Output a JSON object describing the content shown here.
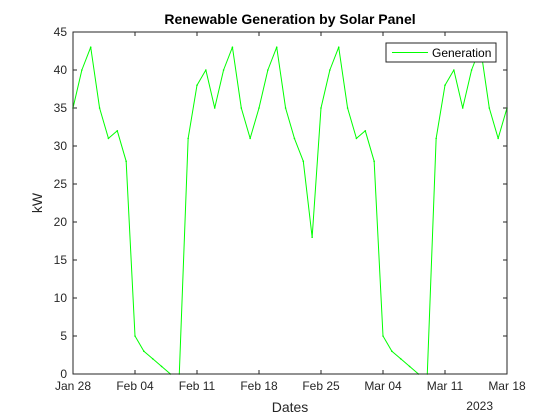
{
  "chart_data": {
    "type": "line",
    "title": "Renewable Generation by Solar Panel",
    "xlabel": "Dates",
    "ylabel": "kW",
    "year_label": "2023",
    "x_tick_labels": [
      "Jan 28",
      "Feb 04",
      "Feb 11",
      "Feb 18",
      "Feb 25",
      "Mar 04",
      "Mar 11",
      "Mar 18"
    ],
    "y_ticks": [
      0,
      5,
      10,
      15,
      20,
      25,
      30,
      35,
      40,
      45
    ],
    "xlim": [
      "2023-01-28",
      "2023-03-18"
    ],
    "ylim": [
      0,
      45
    ],
    "legend_location": "top-right",
    "grid": false,
    "series": [
      {
        "name": "Generation",
        "color": "#00ff00",
        "points": [
          [
            "2023-01-28",
            35
          ],
          [
            "2023-01-29",
            40
          ],
          [
            "2023-01-30",
            43
          ],
          [
            "2023-01-31",
            35
          ],
          [
            "2023-02-01",
            31
          ],
          [
            "2023-02-02",
            32
          ],
          [
            "2023-02-03",
            28
          ],
          [
            "2023-02-04",
            5
          ],
          [
            "2023-02-05",
            3
          ],
          [
            "2023-02-06",
            2
          ],
          [
            "2023-02-07",
            1
          ],
          [
            "2023-02-08",
            0
          ],
          [
            "2023-02-09",
            0
          ],
          [
            "2023-02-10",
            31
          ],
          [
            "2023-02-11",
            38
          ],
          [
            "2023-02-12",
            40
          ],
          [
            "2023-02-13",
            35
          ],
          [
            "2023-02-14",
            40
          ],
          [
            "2023-02-15",
            43
          ],
          [
            "2023-02-16",
            35
          ],
          [
            "2023-02-17",
            31
          ],
          [
            "2023-02-18",
            35
          ],
          [
            "2023-02-19",
            40
          ],
          [
            "2023-02-20",
            43
          ],
          [
            "2023-02-21",
            35
          ],
          [
            "2023-02-22",
            31
          ],
          [
            "2023-02-23",
            28
          ],
          [
            "2023-02-24",
            18
          ],
          [
            "2023-02-25",
            35
          ],
          [
            "2023-02-26",
            40
          ],
          [
            "2023-02-27",
            43
          ],
          [
            "2023-02-28",
            35
          ],
          [
            "2023-03-01",
            31
          ],
          [
            "2023-03-02",
            32
          ],
          [
            "2023-03-03",
            28
          ],
          [
            "2023-03-04",
            5
          ],
          [
            "2023-03-05",
            3
          ],
          [
            "2023-03-06",
            2
          ],
          [
            "2023-03-07",
            1
          ],
          [
            "2023-03-08",
            0
          ],
          [
            "2023-03-09",
            0
          ],
          [
            "2023-03-10",
            31
          ],
          [
            "2023-03-11",
            38
          ],
          [
            "2023-03-12",
            40
          ],
          [
            "2023-03-13",
            35
          ],
          [
            "2023-03-14",
            40
          ],
          [
            "2023-03-15",
            43
          ],
          [
            "2023-03-16",
            35
          ],
          [
            "2023-03-17",
            31
          ],
          [
            "2023-03-18",
            35
          ]
        ]
      }
    ]
  }
}
